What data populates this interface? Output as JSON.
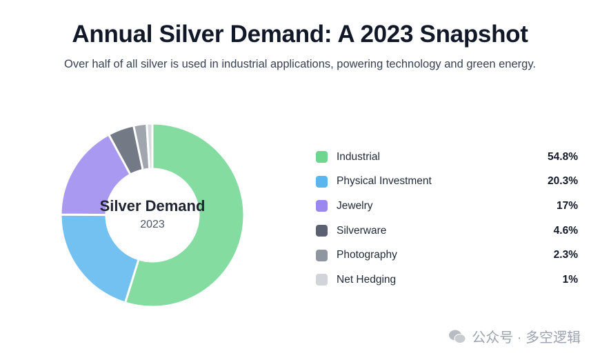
{
  "title": "Annual Silver Demand: A 2023 Snapshot",
  "subtitle": "Over half of all silver is used in industrial applications, powering technology and green energy.",
  "chart_data": {
    "type": "pie",
    "variant": "donut",
    "center_title": "Silver Demand",
    "center_subtitle": "2023",
    "legend_position": "right",
    "categories": [
      "Industrial",
      "Physical Investment",
      "Jewelry",
      "Silverware",
      "Photography",
      "Net Hedging"
    ],
    "values": [
      54.8,
      20.3,
      17,
      4.6,
      2.3,
      1
    ],
    "value_labels": [
      "54.8%",
      "20.3%",
      "17%",
      "4.6%",
      "2.3%",
      "1%"
    ],
    "colors": [
      "#6fd68f",
      "#5ab6ee",
      "#9b87ee",
      "#5b6170",
      "#9096a0",
      "#d1d4d8"
    ]
  },
  "watermark": "公众号 · 多空逻辑"
}
